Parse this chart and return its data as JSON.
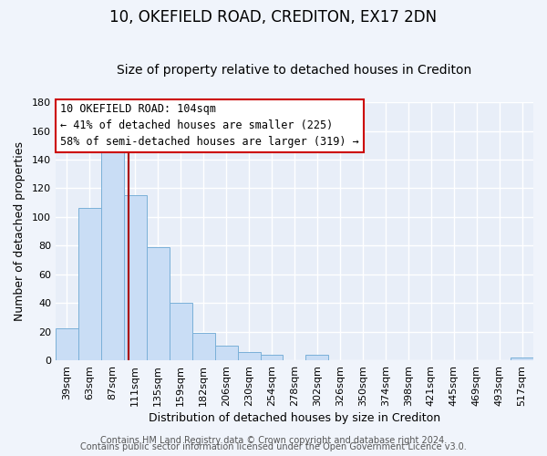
{
  "title": "10, OKEFIELD ROAD, CREDITON, EX17 2DN",
  "subtitle": "Size of property relative to detached houses in Crediton",
  "xlabel": "Distribution of detached houses by size in Crediton",
  "ylabel": "Number of detached properties",
  "bin_labels": [
    "39sqm",
    "63sqm",
    "87sqm",
    "111sqm",
    "135sqm",
    "159sqm",
    "182sqm",
    "206sqm",
    "230sqm",
    "254sqm",
    "278sqm",
    "302sqm",
    "326sqm",
    "350sqm",
    "374sqm",
    "398sqm",
    "421sqm",
    "445sqm",
    "469sqm",
    "493sqm",
    "517sqm"
  ],
  "bar_values": [
    22,
    106,
    147,
    115,
    79,
    40,
    19,
    10,
    6,
    4,
    0,
    4,
    0,
    0,
    0,
    0,
    0,
    0,
    0,
    0,
    2
  ],
  "bar_color": "#c9ddf5",
  "bar_edge_color": "#7ab0d8",
  "vline_x_index": 2.72,
  "vline_color": "#aa0000",
  "annotation_line1": "10 OKEFIELD ROAD: 104sqm",
  "annotation_line2": "← 41% of detached houses are smaller (225)",
  "annotation_line3": "58% of semi-detached houses are larger (319) →",
  "annotation_box_facecolor": "#ffffff",
  "annotation_box_edgecolor": "#cc0000",
  "ylim": [
    0,
    180
  ],
  "yticks": [
    0,
    20,
    40,
    60,
    80,
    100,
    120,
    140,
    160,
    180
  ],
  "footer_line1": "Contains HM Land Registry data © Crown copyright and database right 2024.",
  "footer_line2": "Contains public sector information licensed under the Open Government Licence v3.0.",
  "plot_bg_color": "#e8eef8",
  "fig_bg_color": "#f0f4fb",
  "grid_color": "#ffffff",
  "title_fontsize": 12,
  "subtitle_fontsize": 10,
  "axis_label_fontsize": 9,
  "tick_fontsize": 8,
  "annotation_fontsize": 8.5,
  "footer_fontsize": 7
}
